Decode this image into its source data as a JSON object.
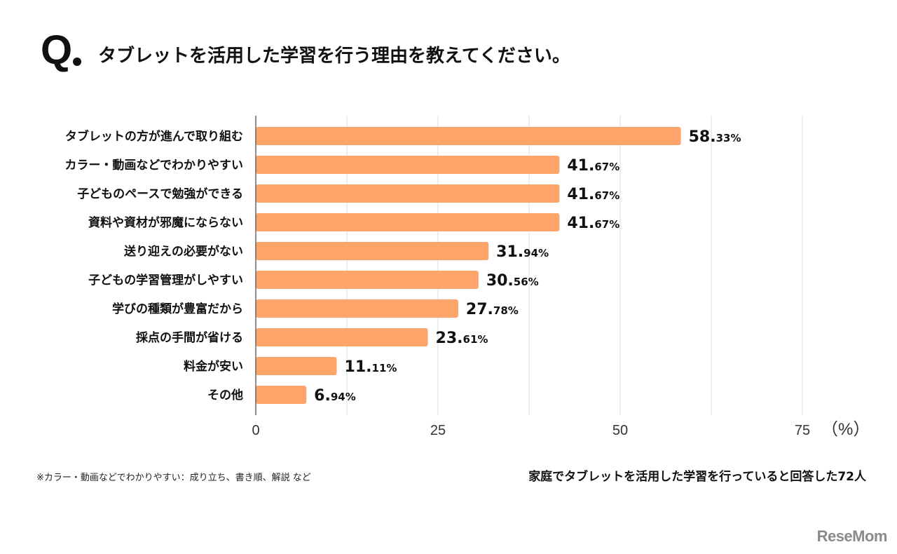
{
  "header": {
    "q_mark": "Q",
    "title": "タブレットを活用した学習を行う理由を教えてください。"
  },
  "chart_data": {
    "type": "bar",
    "orientation": "horizontal",
    "title": "タブレットを活用した学習を行う理由を教えてください。",
    "categories": [
      "タブレットの方が進んで取り組む",
      "カラー・動画などでわかりやすい",
      "子どものペースで勉強ができる",
      "資料や資材が邪魔にならない",
      "送り迎えの必要がない",
      "子どもの学習管理がしやすい",
      "学びの種類が豊富だから",
      "採点の手間が省ける",
      "料金が安い",
      "その他"
    ],
    "values": [
      58.33,
      41.67,
      41.67,
      41.67,
      31.94,
      30.56,
      27.78,
      23.61,
      11.11,
      6.94
    ],
    "value_labels": [
      {
        "int": "58.",
        "dec": "33%"
      },
      {
        "int": "41.",
        "dec": "67%"
      },
      {
        "int": "41.",
        "dec": "67%"
      },
      {
        "int": "41.",
        "dec": "67%"
      },
      {
        "int": "31.",
        "dec": "94%"
      },
      {
        "int": "30.",
        "dec": "56%"
      },
      {
        "int": "27.",
        "dec": "78%"
      },
      {
        "int": "23.",
        "dec": "61%"
      },
      {
        "int": "11.",
        "dec": "11%"
      },
      {
        "int": "6.",
        "dec": "94%"
      }
    ],
    "xlabel": "（%）",
    "ylabel": "",
    "xlim": [
      0,
      75
    ],
    "x_ticks": [
      0,
      25,
      50,
      75
    ],
    "x_tick_labels": [
      "0",
      "25",
      "50",
      "75"
    ],
    "minor_grid_step": 12.5,
    "grid": true,
    "legend": "none",
    "bar_color": "#fca46a"
  },
  "footer": {
    "footnote": "※カラー・動画などでわかりやすい：成り立ち、書き順、解説 など",
    "sample": "家庭でタブレットを活用した学習を行っていると回答した72人"
  },
  "logo": {
    "text": "ReseMom"
  }
}
